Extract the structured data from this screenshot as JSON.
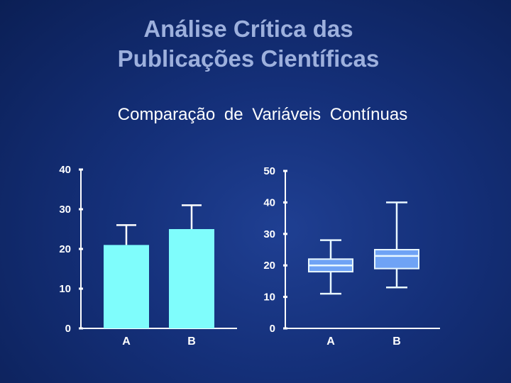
{
  "slide": {
    "title_line1": "Análise Crítica das",
    "title_line2": "Publicações Científicas",
    "subtitle": "Comparação de Variáveis Contínuas"
  },
  "colors": {
    "bar_fill": "#7ffdfc",
    "box_fill": "#6fa3f5",
    "box_stroke": "#e8f7ff",
    "axis": "#ffffff",
    "title": "#9db0dd"
  },
  "chart_data": [
    {
      "type": "bar",
      "categories": [
        "A",
        "B"
      ],
      "values": [
        21,
        25
      ],
      "error_upper": [
        26,
        31
      ],
      "ylim": [
        0,
        40
      ],
      "yticks": [
        0,
        10,
        20,
        30,
        40
      ],
      "title": "",
      "xlabel": "",
      "ylabel": "",
      "grid": false
    },
    {
      "type": "box",
      "categories": [
        "A",
        "B"
      ],
      "boxes": [
        {
          "name": "A",
          "whisker_low": 11,
          "q1": 18,
          "median": 20,
          "q3": 22,
          "whisker_high": 28
        },
        {
          "name": "B",
          "whisker_low": 13,
          "q1": 19,
          "median": 23,
          "q3": 25,
          "whisker_high": 40
        }
      ],
      "ylim": [
        0,
        50
      ],
      "yticks": [
        0,
        10,
        20,
        30,
        40,
        50
      ],
      "title": "",
      "xlabel": "",
      "ylabel": "",
      "grid": false
    }
  ]
}
